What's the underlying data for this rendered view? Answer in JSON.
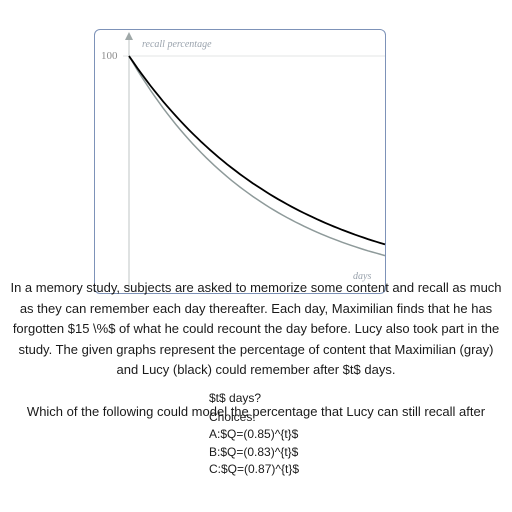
{
  "chart_data": {
    "type": "line",
    "xlabel": "days",
    "ylabel": "recall percentage",
    "y_ticks": [
      "100"
    ],
    "ylim": [
      0,
      105
    ],
    "xlim": [
      0,
      11.5
    ],
    "series": [
      {
        "label_in_text": "gray",
        "color": "#8e9a9a",
        "base": 0.85,
        "x": [
          0,
          1,
          2,
          3,
          4,
          5,
          6,
          7,
          8,
          9,
          10,
          11.5
        ],
        "values": [
          100,
          85,
          72.25,
          61.41,
          52.2,
          44.37,
          37.71,
          32.06,
          27.25,
          23.16,
          19.69,
          15.4
        ]
      },
      {
        "label_in_text": "black",
        "color": "#000000",
        "base": 0.87,
        "x": [
          0,
          1,
          2,
          3,
          4,
          5,
          6,
          7,
          8,
          9,
          10,
          11.5
        ],
        "values": [
          100,
          87,
          75.69,
          65.85,
          57.29,
          49.84,
          43.36,
          37.73,
          32.82,
          28.56,
          24.84,
          20.1
        ]
      }
    ]
  },
  "question": {
    "text": "In a memory study, subjects are asked to memorize some content and recall as much as they can remember each day thereafter. Each day, Maximilian finds that he has forgotten $15 \\%$ of what he could recount the day before. Lucy also took part in the study. The given graphs represent the percentage of content that Maximilian (gray) and Lucy (black) could remember after $t$ days.",
    "sub_text": "$t$ days?",
    "ask": "Which of the following could model the percentage that Lucy can still recall after",
    "choices_label": "Choices:",
    "choices": [
      "A:$Q=(0.85)^{t}$",
      "B:$Q=(0.83)^{t}$",
      "C:$Q=(0.87)^{t}$"
    ]
  }
}
